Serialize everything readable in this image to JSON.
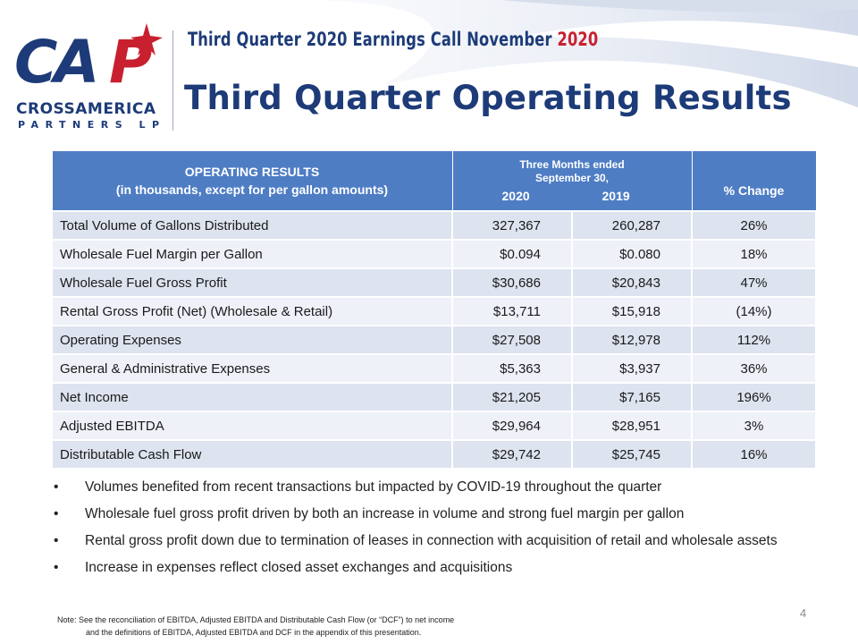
{
  "brand": {
    "name_line1": "CROSSAMERICA",
    "name_line2": "PARTNERS LP",
    "logo_text": "CAP",
    "colors": {
      "navy": "#1d3b78",
      "red": "#c8202f",
      "header_blue": "#4e7dc4"
    }
  },
  "header": {
    "subtitle_main": "Third  Quarter  2020 Earnings  Call November ",
    "subtitle_year": "2020",
    "title": "Third Quarter Operating Results"
  },
  "table": {
    "header_col1_line1": "OPERATING RESULTS",
    "header_col1_line2": "(in thousands, except for per gallon amounts)",
    "header_period_line1": "Three Months ended",
    "header_period_line2": "September 30,",
    "year1": "2020",
    "year2": "2019",
    "header_change": "% Change",
    "rows": [
      {
        "label": "Total Volume of Gallons Distributed",
        "v2020": "327,367",
        "v2019": "260,287",
        "change": "26%"
      },
      {
        "label": "Wholesale Fuel Margin per Gallon",
        "v2020": "$0.094",
        "v2019": "$0.080",
        "change": "18%"
      },
      {
        "label": "Wholesale Fuel Gross Profit",
        "v2020": "$30,686",
        "v2019": "$20,843",
        "change": "47%"
      },
      {
        "label": "Rental Gross Profit  (Net) (Wholesale & Retail)",
        "v2020": "$13,711",
        "v2019": "$15,918",
        "change": "(14%)"
      },
      {
        "label": "Operating Expenses",
        "v2020": "$27,508",
        "v2019": "$12,978",
        "change": "112%"
      },
      {
        "label": "General & Administrative Expenses",
        "v2020": "$5,363",
        "v2019": "$3,937",
        "change": "36%"
      },
      {
        "label": "Net Income",
        "v2020": "$21,205",
        "v2019": "$7,165",
        "change": "196%"
      },
      {
        "label": "Adjusted EBITDA",
        "v2020": "$29,964",
        "v2019": "$28,951",
        "change": "3%"
      },
      {
        "label": "Distributable Cash Flow",
        "v2020": "$29,742",
        "v2019": "$25,745",
        "change": "16%"
      }
    ]
  },
  "bullets": [
    "Volumes benefited from recent transactions but impacted by COVID-19 throughout the quarter",
    "Wholesale fuel gross profit driven by both an increase in volume and strong fuel margin per gallon",
    "Rental gross profit down due to termination of leases in connection with acquisition of retail and wholesale assets",
    "Increase in expenses reflect closed asset exchanges and acquisitions"
  ],
  "note": {
    "line1": "Note: See the reconciliation of EBITDA, Adjusted EBITDA and Distributable Cash Flow (or “DCF”) to net income",
    "line2": "and the definitions of EBITDA, Adjusted EBITDA and DCF in the appendix of this presentation."
  },
  "page_number": "4"
}
